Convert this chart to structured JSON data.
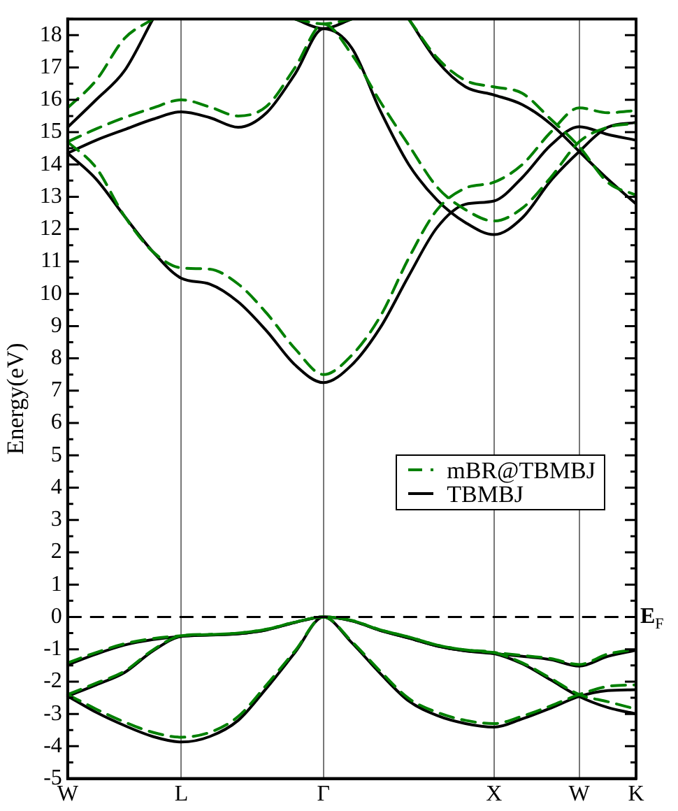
{
  "chart_data": {
    "type": "line",
    "ylabel": "Energy(eV)",
    "ylim": [
      -5,
      18.5
    ],
    "categories": [
      "W",
      null,
      null,
      null,
      "L",
      null,
      null,
      null,
      null,
      "Γ",
      null,
      null,
      null,
      null,
      null,
      "X",
      null,
      null,
      "W",
      null,
      "K"
    ],
    "yticks": [
      -5,
      {
        "value": -4.5,
        "label": null
      },
      -4,
      {
        "value": -3.5,
        "label": null
      },
      -3,
      {
        "value": -2.5,
        "label": null
      },
      -2,
      {
        "value": -1.5,
        "label": null
      },
      -1,
      {
        "value": -0.5,
        "label": null
      },
      0,
      {
        "value": 0.5,
        "label": null
      },
      1,
      {
        "value": 1.5,
        "label": null
      },
      2,
      {
        "value": 2.5,
        "label": null
      },
      3,
      {
        "value": 3.5,
        "label": null
      },
      4,
      {
        "value": 4.5,
        "label": null
      },
      5,
      {
        "value": 5.5,
        "label": null
      },
      6,
      {
        "value": 6.5,
        "label": null
      },
      7,
      {
        "value": 7.5,
        "label": null
      },
      8,
      {
        "value": 8.5,
        "label": null
      },
      9,
      {
        "value": 9.5,
        "label": null
      },
      10,
      {
        "value": 10.5,
        "label": null
      },
      11,
      {
        "value": 11.5,
        "label": null
      },
      12,
      {
        "value": 12.5,
        "label": null
      },
      13,
      {
        "value": 13.5,
        "label": null
      },
      14,
      {
        "value": 14.5,
        "label": null
      },
      15,
      {
        "value": 15.5,
        "label": null
      },
      16,
      {
        "value": 16.5,
        "label": null
      },
      17,
      {
        "value": 17.5,
        "label": null
      },
      18,
      {
        "value": 18.5,
        "label": null
      }
    ],
    "grid": "x",
    "legend": "center right",
    "marker": "none",
    "ref_lines": [
      {
        "axis": "y",
        "value": 0,
        "label": "E$_{F}$",
        "color": "#000000",
        "line_style": "dashed"
      }
    ],
    "series": [
      {
        "name": "mBR@TBMBJ",
        "color": "#008000",
        "line_style": "dashed",
        "values": [
          14.7,
          13.9,
          12.4,
          11.3,
          10.8,
          10.76,
          10.3,
          9.4,
          8.3,
          7.5,
          8.1,
          9.3,
          11.1,
          12.6,
          13.27,
          13.45,
          14.0,
          15.0,
          15.75,
          15.6,
          15.67
        ]
      },
      {
        "color": "#008000",
        "line_style": "dashed",
        "values": [
          14.7,
          15.1,
          15.45,
          15.75,
          16.0,
          15.78,
          15.5,
          15.8,
          17.0,
          18.35,
          17.4,
          15.94,
          14.6,
          13.3,
          12.6,
          12.25,
          12.65,
          13.6,
          14.7,
          15.15,
          15.27
        ]
      },
      {
        "color": "#008000",
        "line_style": "dashed",
        "values": [
          15.75,
          16.6,
          17.9,
          18.5,
          null,
          null,
          null,
          null,
          18.5,
          18.35,
          18.5,
          null,
          18.5,
          17.3,
          16.6,
          16.4,
          16.2,
          15.4,
          14.55,
          13.45,
          13.05
        ]
      },
      {
        "color": "#008000",
        "line_style": "dashed",
        "values": [
          -1.42,
          -1.1,
          -0.83,
          -0.67,
          -0.58,
          -0.54,
          -0.5,
          -0.38,
          -0.16,
          0,
          -0.11,
          -0.4,
          -0.62,
          -0.87,
          -1.02,
          -1.1,
          -1.19,
          -1.29,
          -1.47,
          -1.15,
          -1.0
        ]
      },
      {
        "color": "#008000",
        "line_style": "dashed",
        "values": [
          -2.4,
          -2.05,
          -1.68,
          -1.02,
          -0.58,
          -0.54,
          -0.5,
          -0.38,
          -0.16,
          0,
          -0.11,
          -0.4,
          -0.62,
          -0.87,
          -1.02,
          -1.1,
          -1.42,
          -1.9,
          -2.4,
          -2.62,
          -2.85
        ]
      },
      {
        "color": "#008000",
        "line_style": "dashed",
        "values": [
          -2.4,
          -2.85,
          -3.25,
          -3.57,
          -3.72,
          -3.57,
          -3.08,
          -2.1,
          -1.05,
          0,
          -0.76,
          -1.68,
          -2.52,
          -2.95,
          -3.2,
          -3.3,
          -3.07,
          -2.75,
          -2.4,
          -2.15,
          -2.1
        ]
      },
      {
        "name": "TBMBJ",
        "color": "#000000",
        "line_style": "solid",
        "values": [
          14.35,
          13.55,
          12.4,
          11.3,
          10.48,
          10.3,
          9.75,
          8.85,
          7.8,
          7.25,
          7.8,
          8.95,
          10.55,
          12.05,
          12.77,
          12.87,
          13.6,
          14.6,
          15.17,
          14.93,
          14.75
        ]
      },
      {
        "color": "#000000",
        "line_style": "solid",
        "values": [
          14.35,
          14.75,
          15.08,
          15.4,
          15.63,
          15.45,
          15.15,
          15.6,
          16.8,
          18.2,
          17.6,
          15.66,
          14.0,
          12.9,
          12.2,
          11.83,
          12.35,
          13.5,
          14.4,
          15.15,
          15.3
        ]
      },
      {
        "color": "#000000",
        "line_style": "solid",
        "values": [
          15.15,
          16.0,
          16.9,
          18.5,
          null,
          null,
          null,
          null,
          18.5,
          18.2,
          18.5,
          null,
          18.5,
          17.2,
          16.4,
          16.15,
          15.85,
          15.25,
          14.4,
          13.55,
          12.78
        ]
      },
      {
        "color": "#000000",
        "line_style": "solid",
        "values": [
          -1.48,
          -1.15,
          -0.87,
          -0.7,
          -0.6,
          -0.56,
          -0.52,
          -0.4,
          -0.17,
          0,
          -0.12,
          -0.42,
          -0.65,
          -0.9,
          -1.05,
          -1.13,
          -1.22,
          -1.32,
          -1.52,
          -1.22,
          -1.03
        ]
      },
      {
        "color": "#000000",
        "line_style": "solid",
        "values": [
          -2.45,
          -2.1,
          -1.72,
          -1.05,
          -0.6,
          -0.56,
          -0.52,
          -0.4,
          -0.17,
          0,
          -0.12,
          -0.42,
          -0.65,
          -0.9,
          -1.05,
          -1.13,
          -1.45,
          -1.95,
          -2.46,
          -2.8,
          -3.0
        ]
      },
      {
        "color": "#000000",
        "line_style": "solid",
        "values": [
          -2.45,
          -2.95,
          -3.36,
          -3.7,
          -3.87,
          -3.7,
          -3.2,
          -2.2,
          -1.1,
          0,
          -0.8,
          -1.75,
          -2.6,
          -3.05,
          -3.3,
          -3.41,
          -3.15,
          -2.82,
          -2.46,
          -2.28,
          -2.25
        ]
      }
    ]
  }
}
